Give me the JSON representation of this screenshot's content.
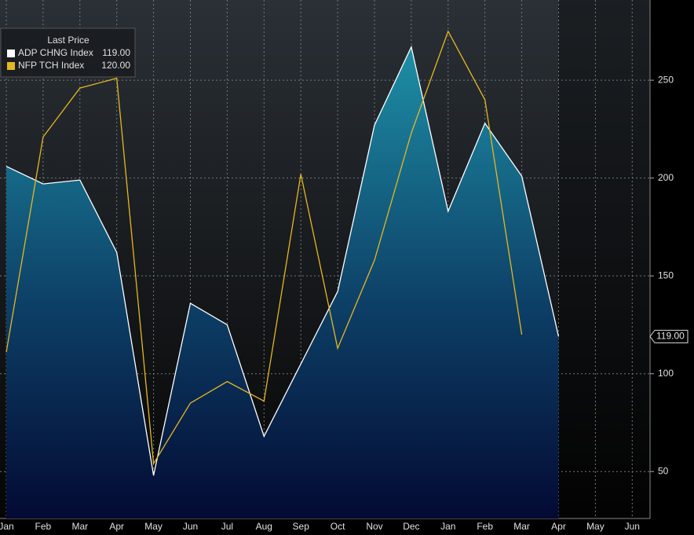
{
  "chart_data": {
    "type": "area-line",
    "legend_title": "Last Price",
    "categories": [
      "Jan",
      "Feb",
      "Mar",
      "Apr",
      "May",
      "Jun",
      "Jul",
      "Aug",
      "Sep",
      "Oct",
      "Nov",
      "Dec",
      "Jan",
      "Feb",
      "Mar",
      "Apr",
      "May",
      "Jun"
    ],
    "series": [
      {
        "name": "ADP CHNG Index",
        "last_label": "119.00",
        "color": "#ffffff",
        "kind": "area",
        "values": [
          206,
          197,
          199,
          162,
          48,
          136,
          125,
          68,
          105,
          142,
          227,
          267,
          183,
          228,
          201,
          119,
          null,
          null
        ]
      },
      {
        "name": "NFP TCH Index",
        "last_label": "120.00",
        "color": "#e6b820",
        "kind": "line",
        "values": [
          111,
          221,
          246,
          251,
          54,
          85,
          96,
          86,
          202,
          113,
          158,
          223,
          275,
          240,
          120,
          null,
          null,
          null
        ]
      }
    ],
    "ylim": [
      26,
      291
    ],
    "yticks": [
      50,
      100,
      150,
      200,
      250
    ],
    "grid": true
  }
}
